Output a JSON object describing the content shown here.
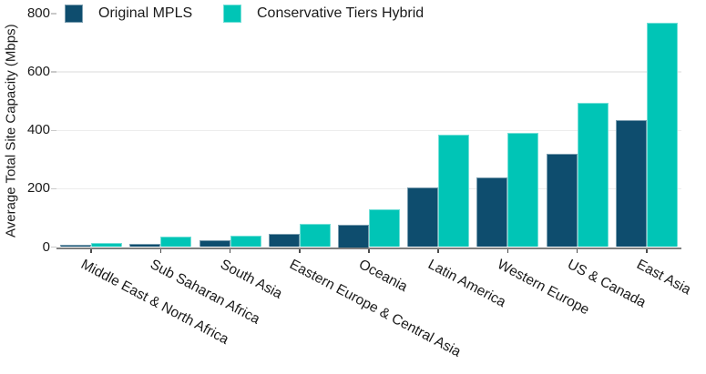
{
  "chart_data": {
    "type": "bar",
    "title": "",
    "xlabel": "",
    "ylabel": "Average Total Site Capacity (Mbps)",
    "ylim": [
      0,
      800
    ],
    "yticks": [
      0,
      200,
      400,
      600,
      800
    ],
    "gridlines": [
      200,
      400,
      600
    ],
    "grid": "on",
    "legend_position": "top-left",
    "categories": [
      "Middle East & North Africa",
      "Sub Saharan Africa",
      "South Asia",
      "Eastern Europe & Central Asia",
      "Oceania",
      "Latin America",
      "Western Europe",
      "US & Canada",
      "East Asia"
    ],
    "series": [
      {
        "name": "Original MPLS",
        "color": "#0E4D6E",
        "values": [
          8,
          12,
          24,
          45,
          75,
          205,
          240,
          320,
          435
        ]
      },
      {
        "name": "Conservative Tiers Hybrid",
        "color": "#00C5B6",
        "values": [
          15,
          36,
          38,
          78,
          128,
          385,
          390,
          495,
          770
        ]
      }
    ]
  },
  "colors": {
    "grid": "#ededed",
    "axis_line": "#7f7f7f",
    "tick": "#c9c9c9",
    "text": "#1a1a1a"
  }
}
